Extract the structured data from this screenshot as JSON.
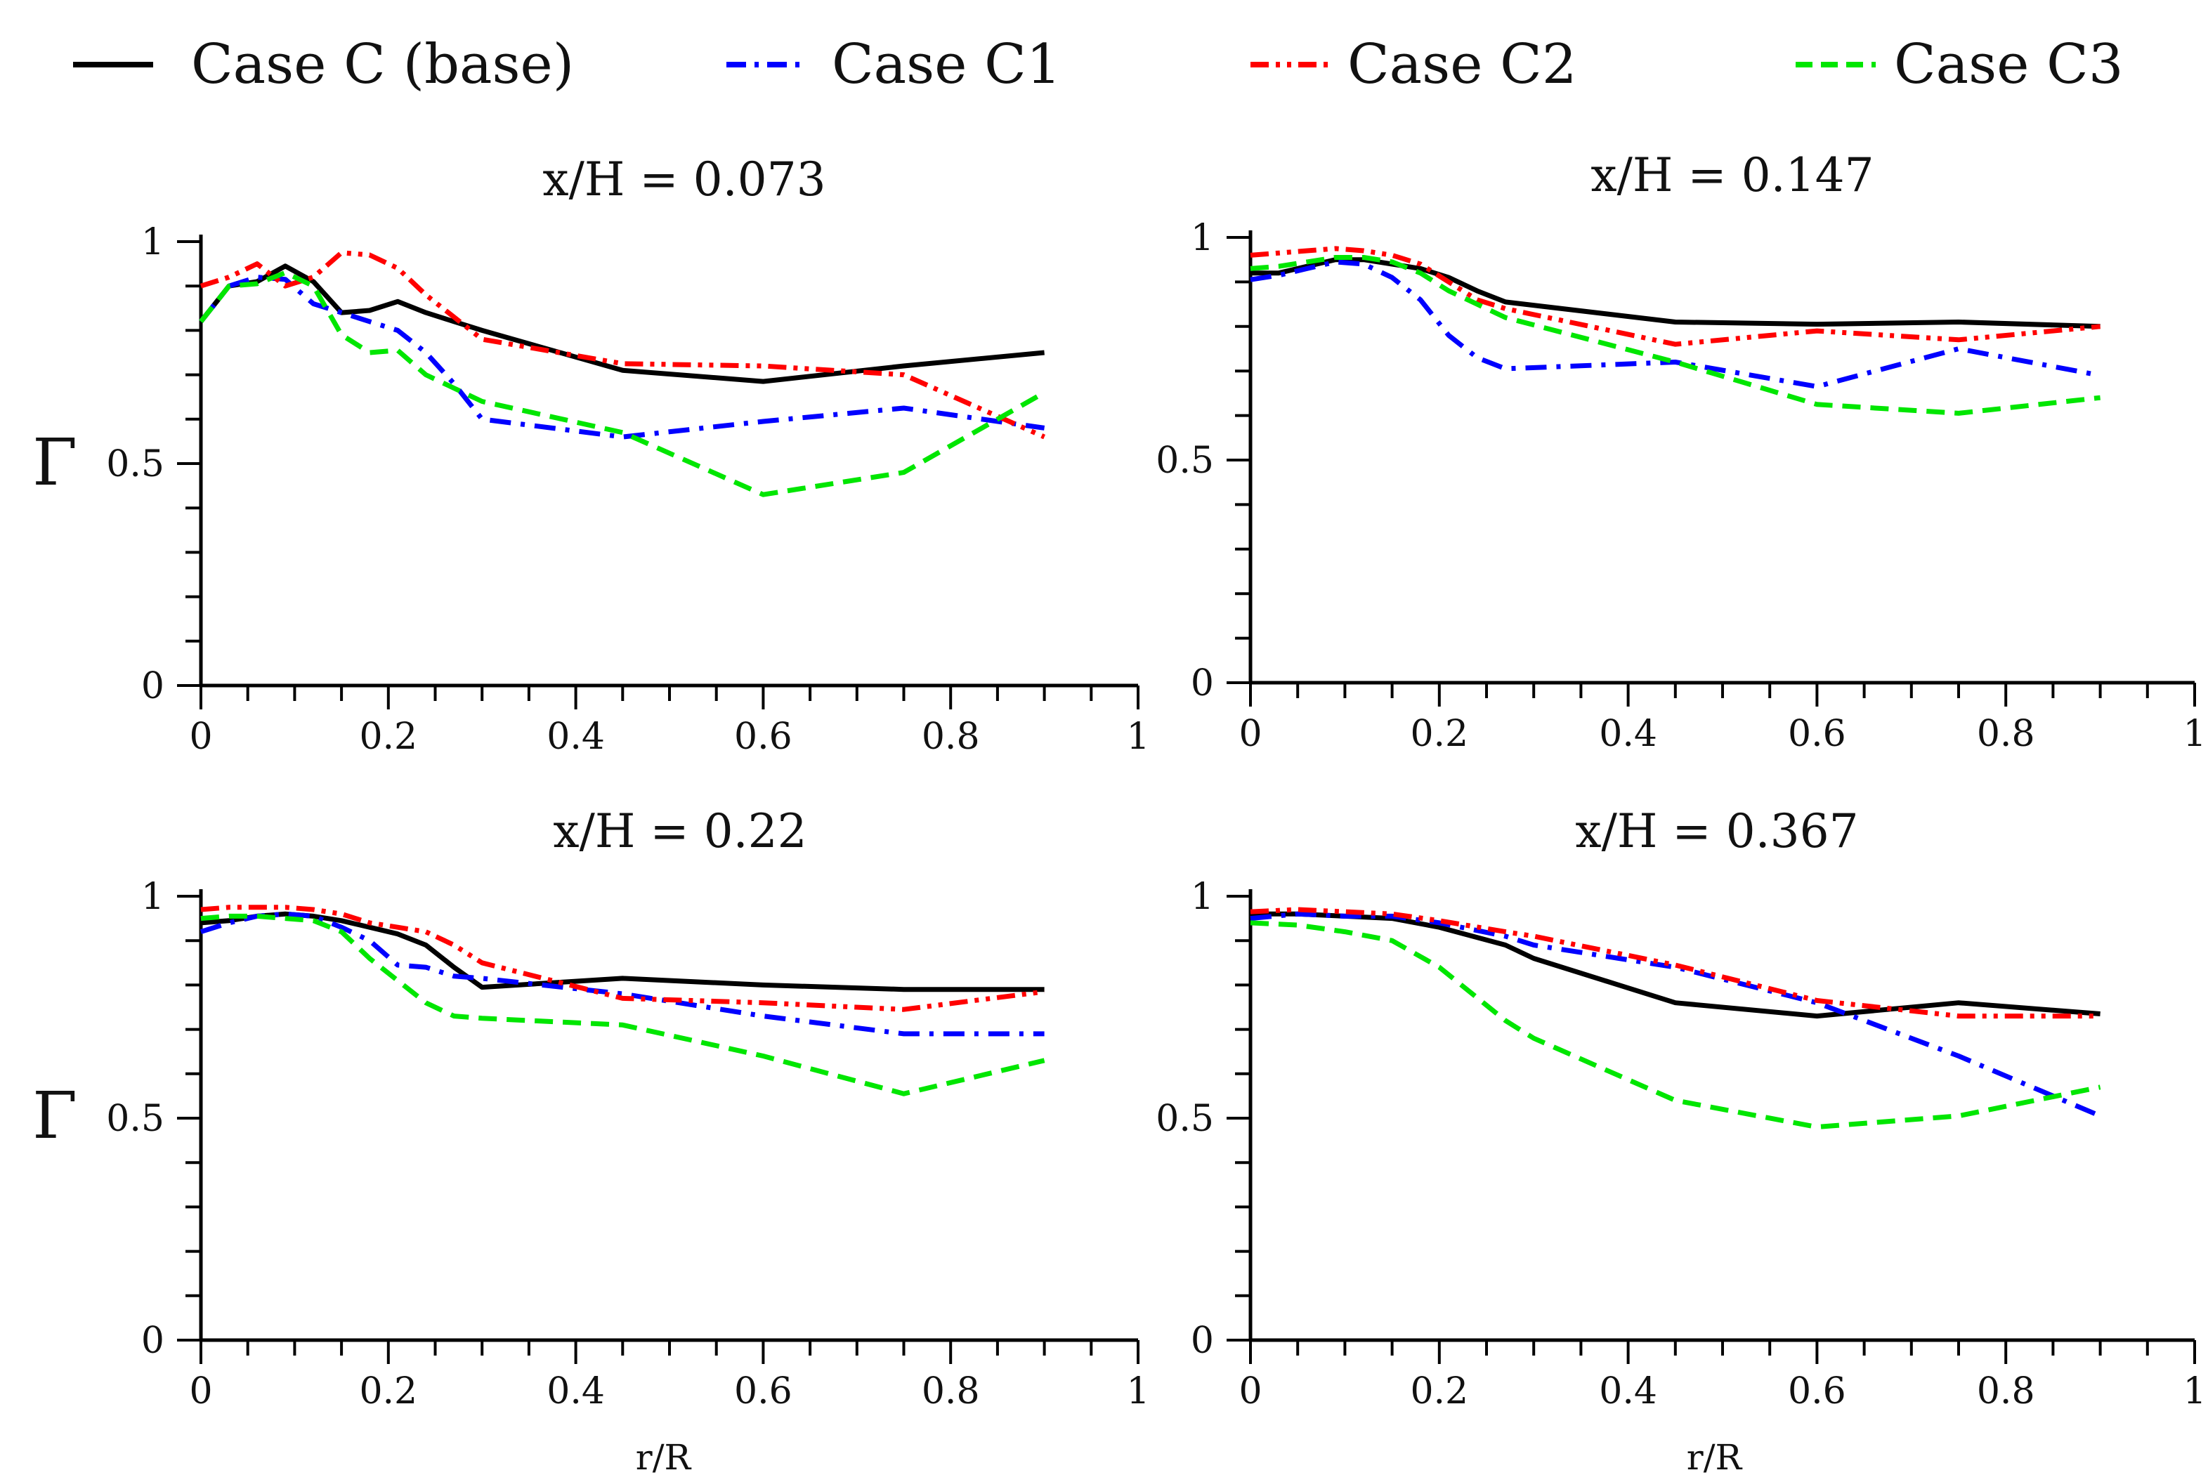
{
  "legend": [
    {
      "name": "Case C (base)",
      "color": "#000000",
      "dash": "solid"
    },
    {
      "name": "Case C1",
      "color": "#0000ff",
      "dash": "dashdot"
    },
    {
      "name": "Case C2",
      "color": "#ff0000",
      "dash": "dashdotdot"
    },
    {
      "name": "Case C3",
      "color": "#00e600",
      "dash": "dashed"
    }
  ],
  "chart_data": [
    {
      "type": "line",
      "title": "x/H = 0.073",
      "xlabel": "",
      "ylabel": "Γ",
      "xlim": [
        0,
        1
      ],
      "ylim": [
        0,
        1
      ],
      "xticks": [
        "0",
        "0.2",
        "0.4",
        "0.6",
        "0.8",
        "1"
      ],
      "yticks": [
        "0",
        "0.5",
        "1"
      ],
      "series": [
        {
          "name": "Case C (base)",
          "x": [
            0,
            0.03,
            0.06,
            0.09,
            0.12,
            0.15,
            0.18,
            0.21,
            0.24,
            0.27,
            0.3,
            0.45,
            0.6,
            0.75,
            0.9
          ],
          "y": [
            0.82,
            0.9,
            0.91,
            0.945,
            0.91,
            0.84,
            0.845,
            0.865,
            0.84,
            0.82,
            0.8,
            0.71,
            0.685,
            0.72,
            0.75
          ]
        },
        {
          "name": "Case C1",
          "x": [
            0,
            0.03,
            0.06,
            0.09,
            0.12,
            0.15,
            0.18,
            0.21,
            0.24,
            0.27,
            0.3,
            0.45,
            0.6,
            0.75,
            0.9
          ],
          "y": [
            0.82,
            0.9,
            0.92,
            0.915,
            0.86,
            0.84,
            0.82,
            0.8,
            0.75,
            0.68,
            0.6,
            0.56,
            0.595,
            0.625,
            0.58
          ]
        },
        {
          "name": "Case C2",
          "x": [
            0,
            0.03,
            0.06,
            0.09,
            0.12,
            0.15,
            0.18,
            0.21,
            0.24,
            0.27,
            0.3,
            0.45,
            0.6,
            0.75,
            0.9
          ],
          "y": [
            0.9,
            0.92,
            0.95,
            0.9,
            0.92,
            0.975,
            0.97,
            0.94,
            0.88,
            0.83,
            0.78,
            0.725,
            0.72,
            0.7,
            0.56
          ]
        },
        {
          "name": "Case C3",
          "x": [
            0,
            0.03,
            0.06,
            0.09,
            0.12,
            0.15,
            0.18,
            0.21,
            0.24,
            0.27,
            0.3,
            0.45,
            0.6,
            0.75,
            0.9
          ],
          "y": [
            0.82,
            0.9,
            0.905,
            0.93,
            0.9,
            0.79,
            0.75,
            0.755,
            0.7,
            0.67,
            0.64,
            0.57,
            0.43,
            0.48,
            0.66
          ]
        }
      ]
    },
    {
      "type": "line",
      "title": "x/H = 0.147",
      "xlabel": "",
      "ylabel": "",
      "xlim": [
        0,
        1
      ],
      "ylim": [
        0,
        1
      ],
      "xticks": [
        "0",
        "0.2",
        "0.4",
        "0.6",
        "0.8",
        "1"
      ],
      "yticks": [
        "0",
        "0.5",
        "1"
      ],
      "series": [
        {
          "name": "Case C (base)",
          "x": [
            0,
            0.03,
            0.06,
            0.09,
            0.12,
            0.15,
            0.18,
            0.21,
            0.24,
            0.27,
            0.45,
            0.6,
            0.75,
            0.9
          ],
          "y": [
            0.92,
            0.92,
            0.935,
            0.95,
            0.95,
            0.94,
            0.93,
            0.91,
            0.88,
            0.855,
            0.81,
            0.805,
            0.81,
            0.8
          ]
        },
        {
          "name": "Case C1",
          "x": [
            0,
            0.03,
            0.06,
            0.09,
            0.12,
            0.15,
            0.18,
            0.21,
            0.24,
            0.27,
            0.45,
            0.6,
            0.75,
            0.9
          ],
          "y": [
            0.905,
            0.915,
            0.93,
            0.945,
            0.94,
            0.91,
            0.86,
            0.78,
            0.73,
            0.705,
            0.72,
            0.665,
            0.75,
            0.69
          ]
        },
        {
          "name": "Case C2",
          "x": [
            0,
            0.03,
            0.06,
            0.09,
            0.12,
            0.15,
            0.18,
            0.21,
            0.24,
            0.27,
            0.45,
            0.6,
            0.75,
            0.9
          ],
          "y": [
            0.96,
            0.965,
            0.97,
            0.975,
            0.97,
            0.96,
            0.94,
            0.9,
            0.86,
            0.84,
            0.76,
            0.79,
            0.77,
            0.8
          ]
        },
        {
          "name": "Case C3",
          "x": [
            0,
            0.03,
            0.06,
            0.09,
            0.12,
            0.15,
            0.18,
            0.21,
            0.24,
            0.27,
            0.45,
            0.6,
            0.75,
            0.9
          ],
          "y": [
            0.93,
            0.935,
            0.945,
            0.955,
            0.955,
            0.945,
            0.92,
            0.88,
            0.85,
            0.82,
            0.72,
            0.625,
            0.605,
            0.64
          ]
        }
      ]
    },
    {
      "type": "line",
      "title": "x/H = 0.22",
      "xlabel": "",
      "ylabel": "Γ",
      "xlim": [
        0,
        1
      ],
      "ylim": [
        0,
        1
      ],
      "xticks": [
        "0",
        "0.2",
        "0.4",
        "0.6",
        "0.8",
        "1"
      ],
      "yticks": [
        "0",
        "0.5",
        "1"
      ],
      "series": [
        {
          "name": "Case C (base)",
          "x": [
            0,
            0.03,
            0.06,
            0.09,
            0.12,
            0.15,
            0.18,
            0.21,
            0.24,
            0.27,
            0.3,
            0.45,
            0.6,
            0.75,
            0.9
          ],
          "y": [
            0.94,
            0.945,
            0.955,
            0.96,
            0.955,
            0.945,
            0.93,
            0.915,
            0.89,
            0.84,
            0.795,
            0.815,
            0.8,
            0.79,
            0.79
          ]
        },
        {
          "name": "Case C1",
          "x": [
            0,
            0.03,
            0.06,
            0.09,
            0.12,
            0.15,
            0.18,
            0.21,
            0.24,
            0.27,
            0.3,
            0.45,
            0.6,
            0.75,
            0.9
          ],
          "y": [
            0.92,
            0.94,
            0.955,
            0.96,
            0.955,
            0.93,
            0.9,
            0.845,
            0.84,
            0.82,
            0.815,
            0.78,
            0.73,
            0.69,
            0.69
          ]
        },
        {
          "name": "Case C2",
          "x": [
            0,
            0.03,
            0.06,
            0.09,
            0.12,
            0.15,
            0.18,
            0.21,
            0.24,
            0.27,
            0.3,
            0.45,
            0.6,
            0.75,
            0.9
          ],
          "y": [
            0.97,
            0.975,
            0.975,
            0.975,
            0.97,
            0.96,
            0.94,
            0.93,
            0.92,
            0.89,
            0.85,
            0.77,
            0.76,
            0.745,
            0.785
          ]
        },
        {
          "name": "Case C3",
          "x": [
            0,
            0.03,
            0.06,
            0.09,
            0.12,
            0.15,
            0.18,
            0.21,
            0.24,
            0.27,
            0.3,
            0.45,
            0.6,
            0.75,
            0.9
          ],
          "y": [
            0.95,
            0.955,
            0.955,
            0.95,
            0.945,
            0.92,
            0.86,
            0.81,
            0.76,
            0.73,
            0.725,
            0.71,
            0.64,
            0.555,
            0.63
          ]
        }
      ]
    },
    {
      "type": "line",
      "title": "x/H = 0.367",
      "xlabel": "r/R",
      "ylabel": "",
      "xlim": [
        0,
        1
      ],
      "ylim": [
        0,
        1
      ],
      "xticks": [
        "0",
        "0.2",
        "0.4",
        "0.6",
        "0.8",
        "1"
      ],
      "yticks": [
        "0",
        "0.5",
        "1"
      ],
      "series": [
        {
          "name": "Case C (base)",
          "x": [
            0,
            0.05,
            0.1,
            0.15,
            0.2,
            0.27,
            0.3,
            0.45,
            0.6,
            0.75,
            0.9
          ],
          "y": [
            0.96,
            0.96,
            0.955,
            0.95,
            0.93,
            0.89,
            0.86,
            0.76,
            0.73,
            0.76,
            0.735
          ]
        },
        {
          "name": "Case C1",
          "x": [
            0,
            0.05,
            0.1,
            0.15,
            0.2,
            0.27,
            0.3,
            0.45,
            0.6,
            0.75,
            0.9
          ],
          "y": [
            0.95,
            0.96,
            0.955,
            0.955,
            0.94,
            0.91,
            0.89,
            0.84,
            0.76,
            0.64,
            0.505
          ]
        },
        {
          "name": "Case C2",
          "x": [
            0,
            0.05,
            0.1,
            0.15,
            0.2,
            0.27,
            0.3,
            0.45,
            0.6,
            0.75,
            0.9
          ],
          "y": [
            0.965,
            0.97,
            0.965,
            0.96,
            0.945,
            0.92,
            0.91,
            0.845,
            0.765,
            0.73,
            0.73
          ]
        },
        {
          "name": "Case C3",
          "x": [
            0,
            0.05,
            0.1,
            0.15,
            0.2,
            0.27,
            0.3,
            0.45,
            0.6,
            0.75,
            0.9
          ],
          "y": [
            0.94,
            0.935,
            0.92,
            0.9,
            0.84,
            0.72,
            0.68,
            0.54,
            0.48,
            0.505,
            0.57
          ]
        }
      ]
    }
  ],
  "shared_xlabel_left": "r/R"
}
